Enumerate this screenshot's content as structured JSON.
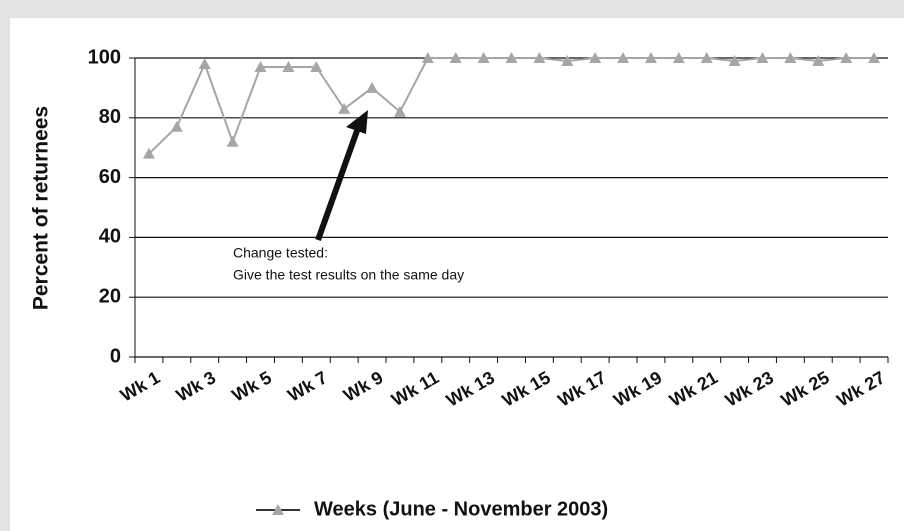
{
  "chart_data": {
    "type": "line",
    "ylabel": "Percent of  returnees",
    "categories": [
      "Wk 1",
      null,
      "Wk 3",
      null,
      "Wk 5",
      null,
      "Wk 7",
      null,
      "Wk 9",
      null,
      "Wk 11",
      null,
      "Wk 13",
      null,
      "Wk 15",
      null,
      "Wk 17",
      null,
      "Wk 19",
      null,
      "Wk 21",
      null,
      "Wk 23",
      null,
      "Wk 25",
      null,
      "Wk 27"
    ],
    "series": [
      {
        "name": "Weeks (June - November 2003)",
        "color": "#a6a6a6",
        "values": [
          68,
          77,
          98,
          72,
          97,
          97,
          97,
          83,
          90,
          82,
          100,
          100,
          100,
          100,
          100,
          99,
          100,
          100,
          100,
          100,
          100,
          99,
          100,
          100,
          99,
          100,
          100
        ]
      }
    ],
    "ylim": [
      0,
      100
    ],
    "yticks": [
      0,
      20,
      40,
      60,
      80,
      100
    ],
    "grid": true,
    "legend": "bottom",
    "annotations": [
      "Change tested:",
      "Give the test results on the same day"
    ]
  }
}
